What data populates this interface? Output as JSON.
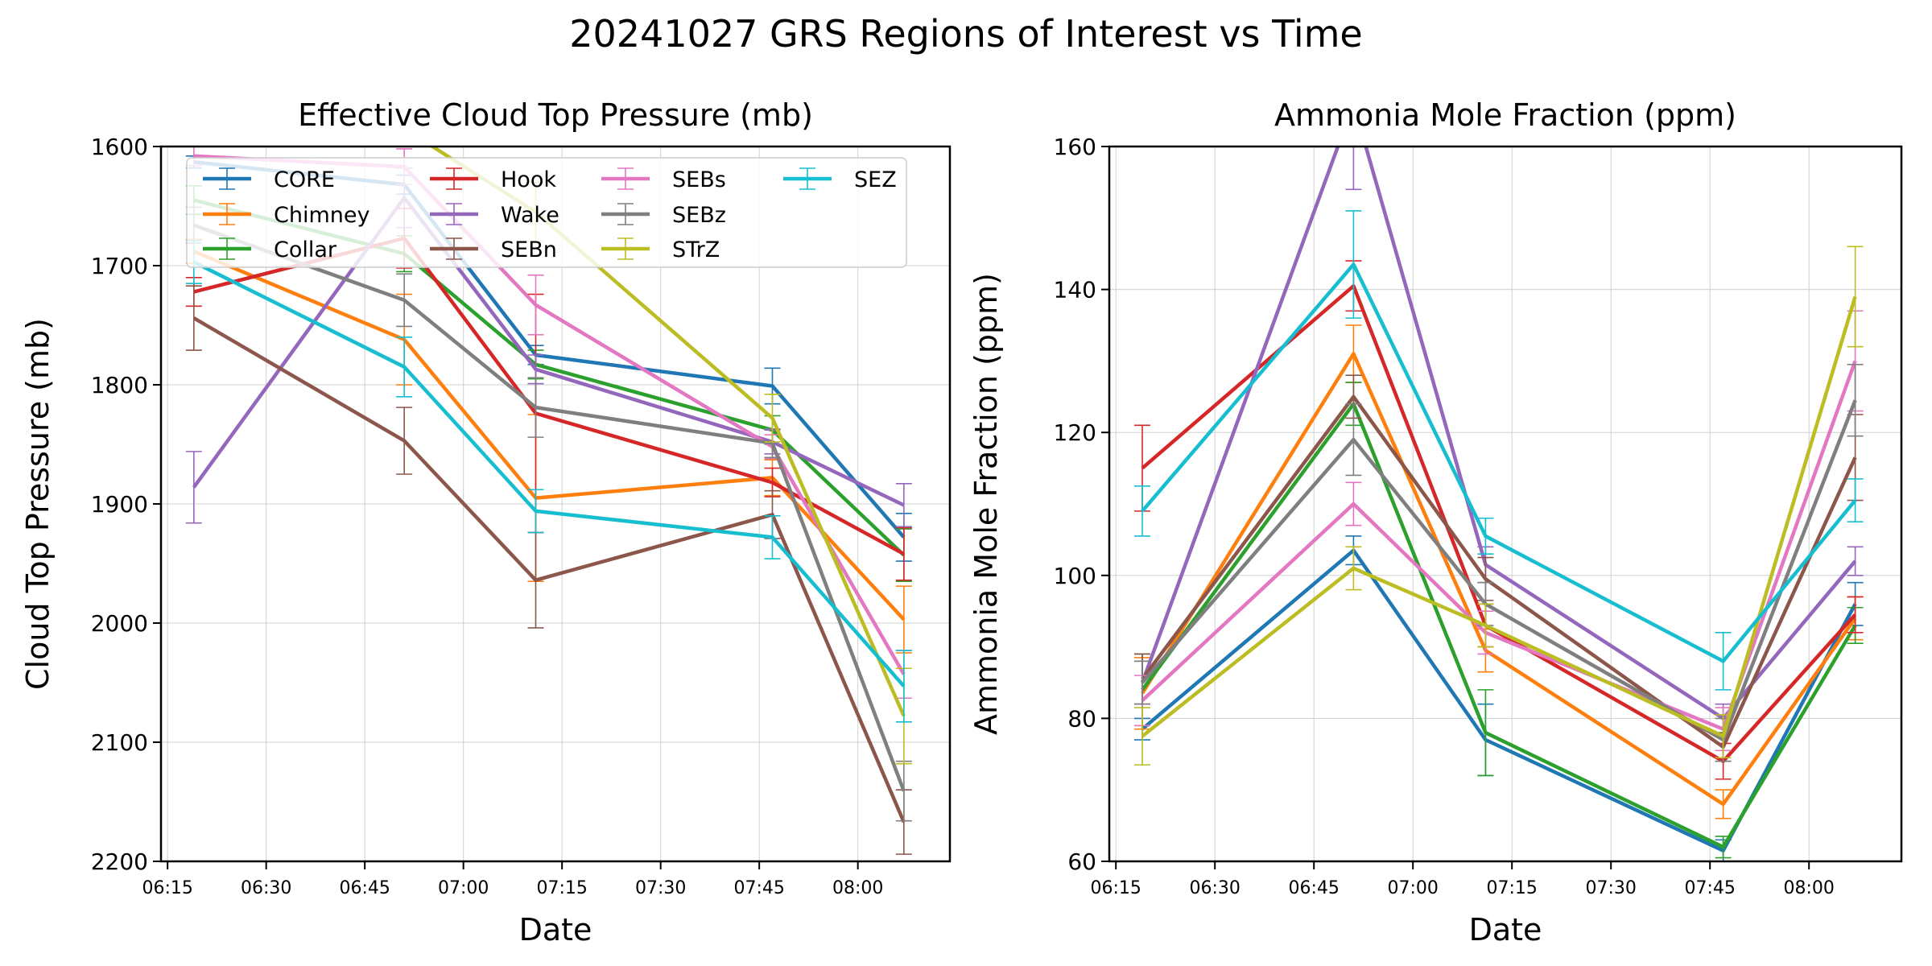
{
  "figure": {
    "title": "20241027 GRS Regions of Interest vs Time"
  },
  "series_styles": [
    {
      "name": "CORE",
      "color": "#1f77b4"
    },
    {
      "name": "Chimney",
      "color": "#ff7f0e"
    },
    {
      "name": "Collar",
      "color": "#2ca02c"
    },
    {
      "name": "Hook",
      "color": "#d62728"
    },
    {
      "name": "Wake",
      "color": "#9467bd"
    },
    {
      "name": "SEBn",
      "color": "#8c564b"
    },
    {
      "name": "SEBs",
      "color": "#e377c2"
    },
    {
      "name": "SEBz",
      "color": "#7f7f7f"
    },
    {
      "name": "STrZ",
      "color": "#bcbd22"
    },
    {
      "name": "SEZ",
      "color": "#17becf"
    }
  ],
  "chart_data": [
    {
      "type": "line",
      "title": "Effective Cloud Top Pressure (mb)",
      "xlabel": "Date",
      "ylabel": "Cloud Top Pressure (mb)",
      "x": [
        "06:19",
        "06:51",
        "07:11",
        "07:47",
        "08:07"
      ],
      "x_ticks": [
        "06:15",
        "06:30",
        "06:45",
        "07:00",
        "07:15",
        "07:30",
        "07:45",
        "08:00"
      ],
      "xlim": [
        "06:14",
        "08:14"
      ],
      "ylim": [
        2200,
        1600
      ],
      "y_inverted": true,
      "y_ticks": [
        1600,
        1700,
        1800,
        1900,
        2000,
        2100,
        2200
      ],
      "grid": true,
      "legend_position": "top",
      "legend_columns": 4,
      "series": [
        {
          "name": "CORE",
          "values": [
            1613,
            1632,
            1775,
            1801,
            1928
          ],
          "errors": [
            5,
            8,
            8,
            15,
            20
          ]
        },
        {
          "name": "Chimney",
          "values": [
            1688,
            1762,
            1895,
            1878,
            1997
          ],
          "errors": [
            10,
            38,
            70,
            15,
            28
          ]
        },
        {
          "name": "Collar",
          "values": [
            1645,
            1690,
            1783,
            1838,
            1943
          ],
          "errors": [
            12,
            15,
            12,
            12,
            22
          ]
        },
        {
          "name": "Hook",
          "values": [
            1722,
            1677,
            1824,
            1882,
            1942
          ],
          "errors": [
            12,
            25,
            100,
            12,
            22
          ]
        },
        {
          "name": "Wake",
          "values": [
            1886,
            1643,
            1787,
            1848,
            1901
          ],
          "errors": [
            30,
            25,
            12,
            10,
            18
          ]
        },
        {
          "name": "SEBn",
          "values": [
            1744,
            1847,
            1964,
            1909,
            2167
          ],
          "errors": [
            27,
            28,
            40,
            20,
            27
          ]
        },
        {
          "name": "SEBs",
          "values": [
            1608,
            1617,
            1733,
            1852,
            2043
          ],
          "errors": [
            8,
            15,
            25,
            10,
            20
          ]
        },
        {
          "name": "SEBz",
          "values": [
            1666,
            1729,
            1819,
            1849,
            2141
          ],
          "errors": [
            15,
            22,
            25,
            12,
            25
          ]
        },
        {
          "name": "STrZ",
          "values": [
            1542,
            1585,
            1655,
            1828,
            2078
          ],
          "errors": [
            10,
            15,
            25,
            20,
            40
          ]
        },
        {
          "name": "SEZ",
          "values": [
            1697,
            1785,
            1906,
            1928,
            2053
          ],
          "errors": [
            18,
            25,
            18,
            18,
            30
          ]
        }
      ]
    },
    {
      "type": "line",
      "title": "Ammonia Mole Fraction (ppm)",
      "xlabel": "Date",
      "ylabel": "Ammonia Mole Fraction (ppm)",
      "x": [
        "06:19",
        "06:51",
        "07:11",
        "07:47",
        "08:07"
      ],
      "x_ticks": [
        "06:15",
        "06:30",
        "06:45",
        "07:00",
        "07:15",
        "07:30",
        "07:45",
        "08:00"
      ],
      "xlim": [
        "06:14",
        "08:14"
      ],
      "ylim": [
        60,
        160
      ],
      "y_ticks": [
        60,
        80,
        100,
        120,
        140,
        160
      ],
      "grid": true,
      "series": [
        {
          "name": "CORE",
          "values": [
            78.5,
            103.5,
            77,
            61.5,
            96
          ],
          "errors": [
            1.5,
            2,
            5,
            1.5,
            3
          ]
        },
        {
          "name": "Chimney",
          "values": [
            83.5,
            131,
            89.5,
            68,
            94
          ],
          "errors": [
            5,
            4,
            3,
            2,
            3
          ]
        },
        {
          "name": "Collar",
          "values": [
            84,
            124,
            78,
            62,
            93
          ],
          "errors": [
            5,
            3,
            6,
            1.5,
            2.5
          ]
        },
        {
          "name": "Hook",
          "values": [
            115,
            140.5,
            93,
            74,
            94.5
          ],
          "errors": [
            6,
            3.5,
            3,
            2.5,
            2.5
          ]
        },
        {
          "name": "Wake",
          "values": [
            85,
            166,
            101.5,
            80,
            102
          ],
          "errors": [
            3,
            12,
            2.5,
            2,
            2
          ]
        },
        {
          "name": "SEBn",
          "values": [
            85.5,
            125,
            99.5,
            76,
            116.5
          ],
          "errors": [
            3.5,
            3,
            3,
            2,
            6
          ]
        },
        {
          "name": "SEBs",
          "values": [
            82.5,
            110,
            92,
            78.5,
            130
          ],
          "errors": [
            3.5,
            3,
            3,
            3,
            7
          ]
        },
        {
          "name": "SEBz",
          "values": [
            85,
            119,
            96,
            77,
            124.5
          ],
          "errors": [
            3,
            5,
            3,
            3,
            5
          ]
        },
        {
          "name": "STrZ",
          "values": [
            77.5,
            101,
            93,
            77.5,
            139
          ],
          "errors": [
            4,
            3,
            3,
            3,
            7
          ]
        },
        {
          "name": "SEZ",
          "values": [
            109,
            143.5,
            105.5,
            88,
            110.5
          ],
          "errors": [
            3.5,
            7.5,
            2.5,
            4,
            3
          ]
        }
      ]
    }
  ]
}
